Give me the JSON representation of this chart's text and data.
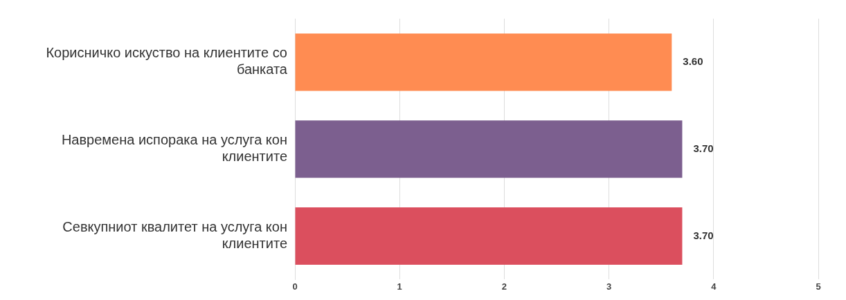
{
  "chart_data": {
    "type": "bar",
    "orientation": "horizontal",
    "categories": [
      "Корисничко искуство на клиентите со банката",
      "Навремена испорака на услуга кон клиентите",
      "Севкупниот квалитет на услуга кон клиентите"
    ],
    "values": [
      3.6,
      3.7,
      3.7
    ],
    "colors": [
      "#ff8c52",
      "#7c5f8f",
      "#db4f5e"
    ],
    "value_labels": [
      "3.60",
      "3.70",
      "3.70"
    ],
    "xlim": [
      0,
      5
    ],
    "xticks": [
      0,
      1,
      2,
      3,
      4,
      5
    ],
    "grid": "x",
    "legend": false
  }
}
